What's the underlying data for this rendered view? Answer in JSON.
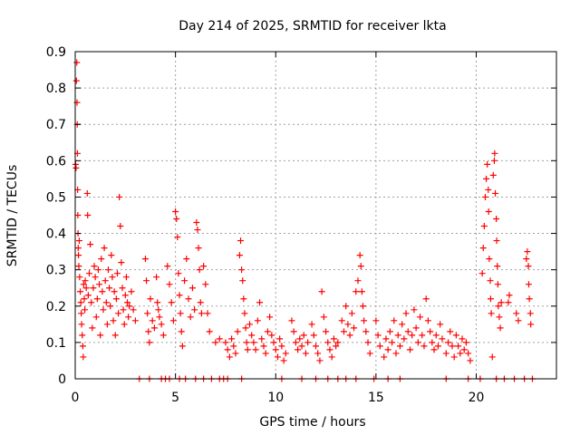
{
  "chart_data": {
    "type": "scatter",
    "title": "Day 214 of 2025, SRMTID for receiver lkta",
    "xlabel": "GPS time / hours",
    "ylabel": "SRMTID / TECUs",
    "xlim": [
      0,
      24
    ],
    "ylim": [
      0,
      0.9
    ],
    "xticks": [
      0,
      5,
      10,
      15,
      20
    ],
    "xtick_labels": [
      "0",
      "5",
      "10",
      "15",
      "20"
    ],
    "yticks": [
      0,
      0.1,
      0.2,
      0.3,
      0.4,
      0.5,
      0.6,
      0.7,
      0.8,
      0.9
    ],
    "ytick_labels": [
      "0",
      "0.1",
      "0.2",
      "0.3",
      "0.4",
      "0.5",
      "0.6",
      "0.7",
      "0.8",
      "0.9"
    ],
    "grid": true,
    "marker": "+",
    "marker_color": "#ff0000",
    "series": [
      {
        "name": "SRMTID",
        "points": [
          [
            0.02,
            0.59
          ],
          [
            0.04,
            0.58
          ],
          [
            0.06,
            0.82
          ],
          [
            0.08,
            0.87
          ],
          [
            0.09,
            0.76
          ],
          [
            0.1,
            0.7
          ],
          [
            0.11,
            0.62
          ],
          [
            0.12,
            0.52
          ],
          [
            0.13,
            0.45
          ],
          [
            0.14,
            0.4
          ],
          [
            0.15,
            0.36
          ],
          [
            0.16,
            0.34
          ],
          [
            0.18,
            0.31
          ],
          [
            0.2,
            0.38
          ],
          [
            0.22,
            0.28
          ],
          [
            0.25,
            0.24
          ],
          [
            0.28,
            0.21
          ],
          [
            0.3,
            0.18
          ],
          [
            0.32,
            0.15
          ],
          [
            0.35,
            0.12
          ],
          [
            0.38,
            0.09
          ],
          [
            0.4,
            0.06
          ],
          [
            0.42,
            0.26
          ],
          [
            0.45,
            0.22
          ],
          [
            0.48,
            0.19
          ],
          [
            0.5,
            0.27
          ],
          [
            0.55,
            0.25
          ],
          [
            0.6,
            0.51
          ],
          [
            0.62,
            0.45
          ],
          [
            0.65,
            0.23
          ],
          [
            0.7,
            0.29
          ],
          [
            0.75,
            0.37
          ],
          [
            0.8,
            0.21
          ],
          [
            0.85,
            0.14
          ],
          [
            0.9,
            0.25
          ],
          [
            0.95,
            0.31
          ],
          [
            1.0,
            0.28
          ],
          [
            1.05,
            0.17
          ],
          [
            1.1,
            0.22
          ],
          [
            1.15,
            0.3
          ],
          [
            1.2,
            0.26
          ],
          [
            1.25,
            0.12
          ],
          [
            1.3,
            0.33
          ],
          [
            1.35,
            0.24
          ],
          [
            1.4,
            0.19
          ],
          [
            1.45,
            0.36
          ],
          [
            1.5,
            0.27
          ],
          [
            1.55,
            0.21
          ],
          [
            1.6,
            0.15
          ],
          [
            1.65,
            0.3
          ],
          [
            1.7,
            0.25
          ],
          [
            1.75,
            0.2
          ],
          [
            1.8,
            0.34
          ],
          [
            1.85,
            0.28
          ],
          [
            1.9,
            0.16
          ],
          [
            1.95,
            0.24
          ],
          [
            2.0,
            0.12
          ],
          [
            2.05,
            0.22
          ],
          [
            2.1,
            0.29
          ],
          [
            2.15,
            0.18
          ],
          [
            2.2,
            0.5
          ],
          [
            2.25,
            0.42
          ],
          [
            2.3,
            0.32
          ],
          [
            2.35,
            0.25
          ],
          [
            2.4,
            0.19
          ],
          [
            2.45,
            0.15
          ],
          [
            2.5,
            0.23
          ],
          [
            2.55,
            0.28
          ],
          [
            2.6,
            0.21
          ],
          [
            2.65,
            0.17
          ],
          [
            2.7,
            0.2
          ],
          [
            2.8,
            0.24
          ],
          [
            2.9,
            0.19
          ],
          [
            3.0,
            0.16
          ],
          [
            3.5,
            0.33
          ],
          [
            3.55,
            0.27
          ],
          [
            3.6,
            0.18
          ],
          [
            3.65,
            0.13
          ],
          [
            3.7,
            0.1
          ],
          [
            3.75,
            0.22
          ],
          [
            3.85,
            0.16
          ],
          [
            3.95,
            0.14
          ],
          [
            4.05,
            0.28
          ],
          [
            4.1,
            0.21
          ],
          [
            4.15,
            0.19
          ],
          [
            4.2,
            0.17
          ],
          [
            4.3,
            0.15
          ],
          [
            4.4,
            0.12
          ],
          [
            4.6,
            0.31
          ],
          [
            4.7,
            0.26
          ],
          [
            4.8,
            0.21
          ],
          [
            4.9,
            0.16
          ],
          [
            5.0,
            0.46
          ],
          [
            5.05,
            0.44
          ],
          [
            5.1,
            0.39
          ],
          [
            5.15,
            0.29
          ],
          [
            5.2,
            0.23
          ],
          [
            5.25,
            0.18
          ],
          [
            5.3,
            0.13
          ],
          [
            5.35,
            0.09
          ],
          [
            5.45,
            0.27
          ],
          [
            5.55,
            0.33
          ],
          [
            5.65,
            0.22
          ],
          [
            5.75,
            0.17
          ],
          [
            5.85,
            0.25
          ],
          [
            5.95,
            0.19
          ],
          [
            6.05,
            0.43
          ],
          [
            6.1,
            0.41
          ],
          [
            6.15,
            0.36
          ],
          [
            6.2,
            0.3
          ],
          [
            6.25,
            0.21
          ],
          [
            6.3,
            0.18
          ],
          [
            6.4,
            0.31
          ],
          [
            6.5,
            0.26
          ],
          [
            6.6,
            0.18
          ],
          [
            6.7,
            0.13
          ],
          [
            7.0,
            0.1
          ],
          [
            7.2,
            0.11
          ],
          [
            7.5,
            0.1
          ],
          [
            7.6,
            0.08
          ],
          [
            7.7,
            0.06
          ],
          [
            7.8,
            0.11
          ],
          [
            7.9,
            0.09
          ],
          [
            8.0,
            0.07
          ],
          [
            8.1,
            0.13
          ],
          [
            8.2,
            0.34
          ],
          [
            8.25,
            0.38
          ],
          [
            8.3,
            0.3
          ],
          [
            8.35,
            0.27
          ],
          [
            8.4,
            0.22
          ],
          [
            8.45,
            0.18
          ],
          [
            8.5,
            0.14
          ],
          [
            8.55,
            0.1
          ],
          [
            8.6,
            0.08
          ],
          [
            8.7,
            0.15
          ],
          [
            8.8,
            0.12
          ],
          [
            8.9,
            0.1
          ],
          [
            9.0,
            0.08
          ],
          [
            9.1,
            0.16
          ],
          [
            9.2,
            0.21
          ],
          [
            9.3,
            0.11
          ],
          [
            9.4,
            0.09
          ],
          [
            9.5,
            0.07
          ],
          [
            9.6,
            0.13
          ],
          [
            9.7,
            0.17
          ],
          [
            9.8,
            0.12
          ],
          [
            9.9,
            0.1
          ],
          [
            10.0,
            0.08
          ],
          [
            10.1,
            0.06
          ],
          [
            10.2,
            0.11
          ],
          [
            10.3,
            0.09
          ],
          [
            10.4,
            0.05
          ],
          [
            10.5,
            0.07
          ],
          [
            10.8,
            0.16
          ],
          [
            10.9,
            0.13
          ],
          [
            11.0,
            0.1
          ],
          [
            11.1,
            0.08
          ],
          [
            11.2,
            0.11
          ],
          [
            11.3,
            0.09
          ],
          [
            11.4,
            0.12
          ],
          [
            11.5,
            0.07
          ],
          [
            11.6,
            0.1
          ],
          [
            11.8,
            0.15
          ],
          [
            11.9,
            0.12
          ],
          [
            12.0,
            0.09
          ],
          [
            12.1,
            0.07
          ],
          [
            12.2,
            0.05
          ],
          [
            12.3,
            0.24
          ],
          [
            12.4,
            0.17
          ],
          [
            12.5,
            0.13
          ],
          [
            12.6,
            0.1
          ],
          [
            12.7,
            0.08
          ],
          [
            12.8,
            0.06
          ],
          [
            12.9,
            0.11
          ],
          [
            13.0,
            0.09
          ],
          [
            13.1,
            0.1
          ],
          [
            13.3,
            0.16
          ],
          [
            13.4,
            0.13
          ],
          [
            13.5,
            0.2
          ],
          [
            13.6,
            0.15
          ],
          [
            13.7,
            0.12
          ],
          [
            13.8,
            0.18
          ],
          [
            13.9,
            0.14
          ],
          [
            14.0,
            0.24
          ],
          [
            14.1,
            0.27
          ],
          [
            14.2,
            0.34
          ],
          [
            14.25,
            0.31
          ],
          [
            14.3,
            0.24
          ],
          [
            14.35,
            0.2
          ],
          [
            14.4,
            0.16
          ],
          [
            14.5,
            0.13
          ],
          [
            14.6,
            0.1
          ],
          [
            14.7,
            0.07
          ],
          [
            15.0,
            0.16
          ],
          [
            15.1,
            0.12
          ],
          [
            15.2,
            0.09
          ],
          [
            15.4,
            0.06
          ],
          [
            15.5,
            0.11
          ],
          [
            15.6,
            0.08
          ],
          [
            15.7,
            0.13
          ],
          [
            15.8,
            0.1
          ],
          [
            15.9,
            0.16
          ],
          [
            16.0,
            0.07
          ],
          [
            16.1,
            0.12
          ],
          [
            16.2,
            0.09
          ],
          [
            16.3,
            0.15
          ],
          [
            16.4,
            0.11
          ],
          [
            16.5,
            0.18
          ],
          [
            16.6,
            0.13
          ],
          [
            16.7,
            0.08
          ],
          [
            16.8,
            0.12
          ],
          [
            16.9,
            0.19
          ],
          [
            17.0,
            0.14
          ],
          [
            17.1,
            0.1
          ],
          [
            17.2,
            0.17
          ],
          [
            17.3,
            0.12
          ],
          [
            17.4,
            0.09
          ],
          [
            17.5,
            0.22
          ],
          [
            17.6,
            0.16
          ],
          [
            17.7,
            0.13
          ],
          [
            17.8,
            0.1
          ],
          [
            17.9,
            0.08
          ],
          [
            18.0,
            0.12
          ],
          [
            18.1,
            0.09
          ],
          [
            18.2,
            0.15
          ],
          [
            18.3,
            0.11
          ],
          [
            18.5,
            0.07
          ],
          [
            18.6,
            0.1
          ],
          [
            18.7,
            0.13
          ],
          [
            18.8,
            0.09
          ],
          [
            18.9,
            0.06
          ],
          [
            19.0,
            0.12
          ],
          [
            19.1,
            0.09
          ],
          [
            19.2,
            0.07
          ],
          [
            19.3,
            0.11
          ],
          [
            19.4,
            0.08
          ],
          [
            19.5,
            0.1
          ],
          [
            19.6,
            0.07
          ],
          [
            19.7,
            0.05
          ],
          [
            20.3,
            0.29
          ],
          [
            20.35,
            0.36
          ],
          [
            20.4,
            0.42
          ],
          [
            20.45,
            0.5
          ],
          [
            20.5,
            0.55
          ],
          [
            20.55,
            0.59
          ],
          [
            20.6,
            0.52
          ],
          [
            20.62,
            0.46
          ],
          [
            20.65,
            0.33
          ],
          [
            20.7,
            0.27
          ],
          [
            20.72,
            0.22
          ],
          [
            20.75,
            0.18
          ],
          [
            20.8,
            0.06
          ],
          [
            20.85,
            0.56
          ],
          [
            20.9,
            0.6
          ],
          [
            20.92,
            0.62
          ],
          [
            20.95,
            0.51
          ],
          [
            21.0,
            0.44
          ],
          [
            21.02,
            0.38
          ],
          [
            21.05,
            0.31
          ],
          [
            21.08,
            0.26
          ],
          [
            21.1,
            0.2
          ],
          [
            21.15,
            0.17
          ],
          [
            21.2,
            0.14
          ],
          [
            21.25,
            0.21
          ],
          [
            21.6,
            0.21
          ],
          [
            21.65,
            0.23
          ],
          [
            22.0,
            0.18
          ],
          [
            22.1,
            0.16
          ],
          [
            22.5,
            0.33
          ],
          [
            22.55,
            0.35
          ],
          [
            22.6,
            0.31
          ],
          [
            22.62,
            0.26
          ],
          [
            22.65,
            0.22
          ],
          [
            22.7,
            0.18
          ],
          [
            22.72,
            0.15
          ]
        ]
      },
      {
        "name": "zero-markers",
        "points": [
          [
            3.2,
            0
          ],
          [
            3.7,
            0
          ],
          [
            4.3,
            0
          ],
          [
            4.5,
            0
          ],
          [
            4.7,
            0
          ],
          [
            5.2,
            0
          ],
          [
            5.5,
            0
          ],
          [
            6.0,
            0
          ],
          [
            6.4,
            0
          ],
          [
            6.8,
            0
          ],
          [
            7.2,
            0
          ],
          [
            7.4,
            0
          ],
          [
            7.6,
            0
          ],
          [
            8.3,
            0
          ],
          [
            10.3,
            0
          ],
          [
            11.3,
            0
          ],
          [
            12.0,
            0
          ],
          [
            12.6,
            0
          ],
          [
            13.1,
            0
          ],
          [
            13.5,
            0
          ],
          [
            14.0,
            0
          ],
          [
            14.9,
            0
          ],
          [
            15.6,
            0
          ],
          [
            16.2,
            0
          ],
          [
            18.5,
            0
          ],
          [
            19.6,
            0
          ],
          [
            20.2,
            0
          ],
          [
            21.0,
            0
          ],
          [
            21.4,
            0
          ],
          [
            21.9,
            0
          ],
          [
            22.4,
            0
          ],
          [
            22.8,
            0
          ]
        ]
      }
    ]
  }
}
